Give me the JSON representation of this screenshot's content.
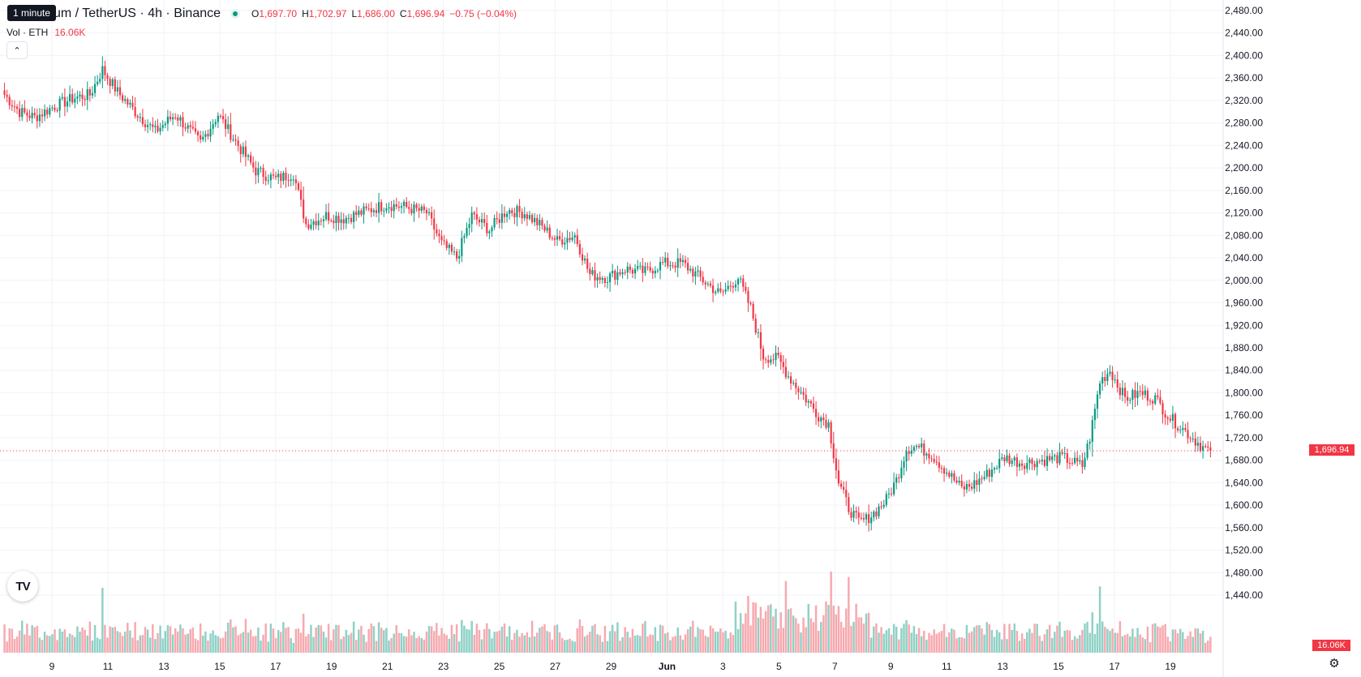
{
  "header": {
    "interval_tooltip": "1 minute",
    "symbol_title": "um / TetherUS · 4h · Binance",
    "ohlc": {
      "o_label": "O",
      "o_value": "1,697.70",
      "h_label": "H",
      "h_value": "1,702.97",
      "l_label": "L",
      "l_value": "1,686.00",
      "c_label": "C",
      "c_value": "1,696.94",
      "change": "−0.75 (−0.04%)"
    },
    "volume_label": "Vol · ETH",
    "volume_value": "16.06K"
  },
  "colors": {
    "up": "#089981",
    "down": "#f23645",
    "up_volume": "#8fd1c6",
    "down_volume": "#f7a9af",
    "grid": "#f0f3fa"
  },
  "icons": {
    "collapse": "chevron-up-icon",
    "logo": "tradingview-logo",
    "settings": "gear-icon"
  },
  "price_scale": {
    "ticks": [
      "2,480.00",
      "2,440.00",
      "2,400.00",
      "2,360.00",
      "2,320.00",
      "2,280.00",
      "2,240.00",
      "2,200.00",
      "2,160.00",
      "2,120.00",
      "2,080.00",
      "2,040.00",
      "2,000.00",
      "1,960.00",
      "1,920.00",
      "1,880.00",
      "1,840.00",
      "1,800.00",
      "1,760.00",
      "1,720.00",
      "1,680.00",
      "1,640.00",
      "1,600.00",
      "1,560.00",
      "1,520.00",
      "1,480.00",
      "1,440.00"
    ],
    "current_price_label": "1,696.94",
    "current_volume_label": "16.06K"
  },
  "time_scale": {
    "ticks": [
      "9",
      "11",
      "13",
      "15",
      "17",
      "19",
      "21",
      "23",
      "25",
      "27",
      "29",
      "Jun",
      "3",
      "5",
      "7",
      "9",
      "11",
      "13",
      "15",
      "17",
      "19"
    ]
  },
  "chart_data": {
    "type": "candlestick",
    "symbol": "um / TetherUS",
    "timeframe": "4h",
    "exchange": "Binance",
    "y_range": [
      1420,
      2490
    ],
    "last_price": 1696.94,
    "anchors": [
      [
        0,
        2330
      ],
      [
        6,
        2300
      ],
      [
        12,
        2290
      ],
      [
        20,
        2310
      ],
      [
        28,
        2325
      ],
      [
        34,
        2330
      ],
      [
        39,
        2375
      ],
      [
        45,
        2335
      ],
      [
        52,
        2300
      ],
      [
        60,
        2265
      ],
      [
        68,
        2295
      ],
      [
        78,
        2245
      ],
      [
        85,
        2295
      ],
      [
        93,
        2240
      ],
      [
        100,
        2195
      ],
      [
        108,
        2180
      ],
      [
        115,
        2190
      ],
      [
        120,
        2100
      ],
      [
        128,
        2115
      ],
      [
        135,
        2110
      ],
      [
        145,
        2125
      ],
      [
        152,
        2135
      ],
      [
        160,
        2130
      ],
      [
        168,
        2120
      ],
      [
        174,
        2065
      ],
      [
        180,
        2040
      ],
      [
        186,
        2115
      ],
      [
        193,
        2090
      ],
      [
        200,
        2125
      ],
      [
        207,
        2120
      ],
      [
        214,
        2095
      ],
      [
        220,
        2070
      ],
      [
        227,
        2080
      ],
      [
        233,
        2010
      ],
      [
        240,
        2005
      ],
      [
        247,
        2020
      ],
      [
        255,
        2015
      ],
      [
        262,
        2030
      ],
      [
        270,
        2030
      ],
      [
        278,
        2000
      ],
      [
        285,
        1975
      ],
      [
        292,
        2005
      ],
      [
        297,
        1950
      ],
      [
        302,
        1865
      ],
      [
        308,
        1860
      ],
      [
        312,
        1830
      ],
      [
        318,
        1795
      ],
      [
        324,
        1760
      ],
      [
        328,
        1745
      ],
      [
        332,
        1640
      ],
      [
        336,
        1595
      ],
      [
        340,
        1570
      ],
      [
        343,
        1575
      ],
      [
        347,
        1590
      ],
      [
        351,
        1610
      ],
      [
        355,
        1645
      ],
      [
        359,
        1700
      ],
      [
        363,
        1705
      ],
      [
        369,
        1690
      ],
      [
        375,
        1660
      ],
      [
        381,
        1630
      ],
      [
        385,
        1635
      ],
      [
        391,
        1655
      ],
      [
        398,
        1685
      ],
      [
        405,
        1675
      ],
      [
        413,
        1680
      ],
      [
        421,
        1685
      ],
      [
        429,
        1670
      ],
      [
        432,
        1720
      ],
      [
        436,
        1820
      ],
      [
        440,
        1840
      ],
      [
        446,
        1790
      ],
      [
        452,
        1800
      ],
      [
        458,
        1790
      ],
      [
        464,
        1755
      ],
      [
        468,
        1740
      ],
      [
        474,
        1715
      ],
      [
        478,
        1700
      ],
      [
        480,
        1697
      ]
    ],
    "seed": 7,
    "volume_range": [
      0,
      6000
    ],
    "notable_volume_spikes": [
      [
        39,
        4800
      ],
      [
        296,
        4200
      ],
      [
        311,
        5300
      ],
      [
        329,
        6000
      ],
      [
        336,
        5600
      ],
      [
        436,
        4900
      ]
    ]
  }
}
